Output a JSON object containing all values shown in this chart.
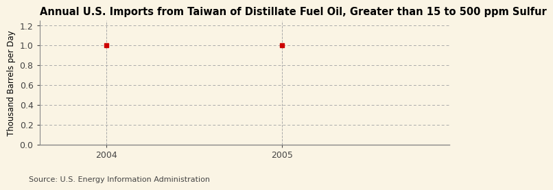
{
  "title": "Annual U.S. Imports from Taiwan of Distillate Fuel Oil, Greater than 15 to 500 ppm Sulfur",
  "ylabel": "Thousand Barrels per Day",
  "source_text": "Source: U.S. Energy Information Administration",
  "x_data": [
    2004,
    2005
  ],
  "y_data": [
    1.0,
    1.0
  ],
  "xlim": [
    2003.62,
    2005.95
  ],
  "ylim": [
    0.0,
    1.25
  ],
  "yticks": [
    0.0,
    0.2,
    0.4,
    0.6,
    0.8,
    1.0,
    1.2
  ],
  "xticks": [
    2004,
    2005
  ],
  "marker_color": "#cc0000",
  "marker_size": 4,
  "background_color": "#faf4e4",
  "grid_color": "#aaaaaa",
  "title_fontsize": 10.5,
  "ylabel_fontsize": 8.5,
  "source_fontsize": 8,
  "tick_fontsize": 9,
  "vline_color": "#aaaaaa",
  "spine_color": "#888888"
}
